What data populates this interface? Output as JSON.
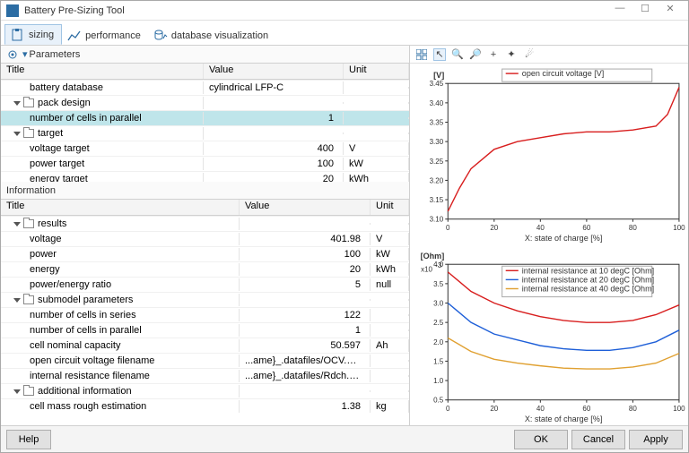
{
  "window": {
    "title": "Battery Pre-Sizing Tool"
  },
  "tabs": {
    "sizing": "sizing",
    "performance": "performance",
    "dbviz": "database visualization"
  },
  "panels": {
    "parameters": "Parameters",
    "information": "Information",
    "title_col": "Title",
    "value_col": "Value",
    "unit_col": "Unit"
  },
  "parameters": {
    "battery_db": {
      "title": "battery database",
      "value": "cylindrical LFP-C",
      "unit": ""
    },
    "pack_design": {
      "title": "pack design"
    },
    "cells_parallel": {
      "title": "number of cells in parallel",
      "value": "1",
      "unit": ""
    },
    "target": {
      "title": "target"
    },
    "voltage_target": {
      "title": "voltage target",
      "value": "400",
      "unit": "V"
    },
    "power_target": {
      "title": "power target",
      "value": "100",
      "unit": "kW"
    },
    "energy_target": {
      "title": "energy target",
      "value": "20",
      "unit": "kWh"
    }
  },
  "information": {
    "results": {
      "title": "results"
    },
    "voltage": {
      "title": "voltage",
      "value": "401.98",
      "unit": "V"
    },
    "power": {
      "title": "power",
      "value": "100",
      "unit": "kW"
    },
    "energy": {
      "title": "energy",
      "value": "20",
      "unit": "kWh"
    },
    "pe_ratio": {
      "title": "power/energy ratio",
      "value": "5",
      "unit": "null"
    },
    "submodel": {
      "title": "submodel parameters"
    },
    "cells_series": {
      "title": "number of cells in series",
      "value": "122",
      "unit": ""
    },
    "cells_parallel": {
      "title": "number of cells in parallel",
      "value": "1",
      "unit": ""
    },
    "capacity": {
      "title": "cell nominal capacity",
      "value": "50.597",
      "unit": "Ah"
    },
    "ocv_file": {
      "title": "open circuit voltage filename",
      "value": "...ame}_.datafiles/OCV.data",
      "unit": ""
    },
    "r_file": {
      "title": "internal resistance filename",
      "value": "...ame}_.datafiles/Rdch.data",
      "unit": ""
    },
    "additional": {
      "title": "additional information"
    },
    "cell_mass": {
      "title": "cell mass rough estimation",
      "value": "1.38",
      "unit": "kg"
    }
  },
  "chart1": {
    "type": "line",
    "legend": "open circuit voltage [V]",
    "ylabel": "[V]",
    "xlabel": "X: state of charge [%]",
    "xlim": [
      0,
      100
    ],
    "xtick_step": 20,
    "ylim": [
      3.1,
      3.45
    ],
    "ytick_step": 0.05,
    "line_color": "#d81e1e",
    "background": "#ffffff",
    "grid_color": "#333333",
    "x": [
      0,
      5,
      10,
      20,
      30,
      40,
      50,
      60,
      70,
      80,
      90,
      95,
      100
    ],
    "y": [
      3.12,
      3.18,
      3.23,
      3.28,
      3.3,
      3.31,
      3.32,
      3.325,
      3.325,
      3.33,
      3.34,
      3.37,
      3.44
    ]
  },
  "chart2": {
    "type": "line",
    "ylabel": "[Ohm]",
    "y_exp": "x10",
    "y_exp_sup": "-3",
    "xlabel": "X: state of charge [%]",
    "xlim": [
      0,
      100
    ],
    "xtick_step": 20,
    "ylim": [
      0.5,
      4.0
    ],
    "ytick_step": 0.5,
    "background": "#ffffff",
    "series": [
      {
        "label": "internal resistance at 10 degC [Ohm]",
        "color": "#d81e1e",
        "x": [
          0,
          10,
          20,
          30,
          40,
          50,
          60,
          70,
          80,
          90,
          100
        ],
        "y": [
          3.8,
          3.3,
          3.0,
          2.8,
          2.65,
          2.55,
          2.5,
          2.5,
          2.55,
          2.7,
          2.95
        ]
      },
      {
        "label": "internal resistance at 20 degC [Ohm]",
        "color": "#1e5fd8",
        "x": [
          0,
          10,
          20,
          30,
          40,
          50,
          60,
          70,
          80,
          90,
          100
        ],
        "y": [
          3.0,
          2.5,
          2.2,
          2.05,
          1.9,
          1.82,
          1.78,
          1.78,
          1.85,
          2.0,
          2.3
        ]
      },
      {
        "label": "internal resistance at 40 degC [Ohm]",
        "color": "#e0a030",
        "x": [
          0,
          10,
          20,
          30,
          40,
          50,
          60,
          70,
          80,
          90,
          100
        ],
        "y": [
          2.1,
          1.75,
          1.55,
          1.45,
          1.38,
          1.32,
          1.3,
          1.3,
          1.35,
          1.45,
          1.7
        ]
      }
    ]
  },
  "buttons": {
    "help": "Help",
    "ok": "OK",
    "cancel": "Cancel",
    "apply": "Apply"
  }
}
